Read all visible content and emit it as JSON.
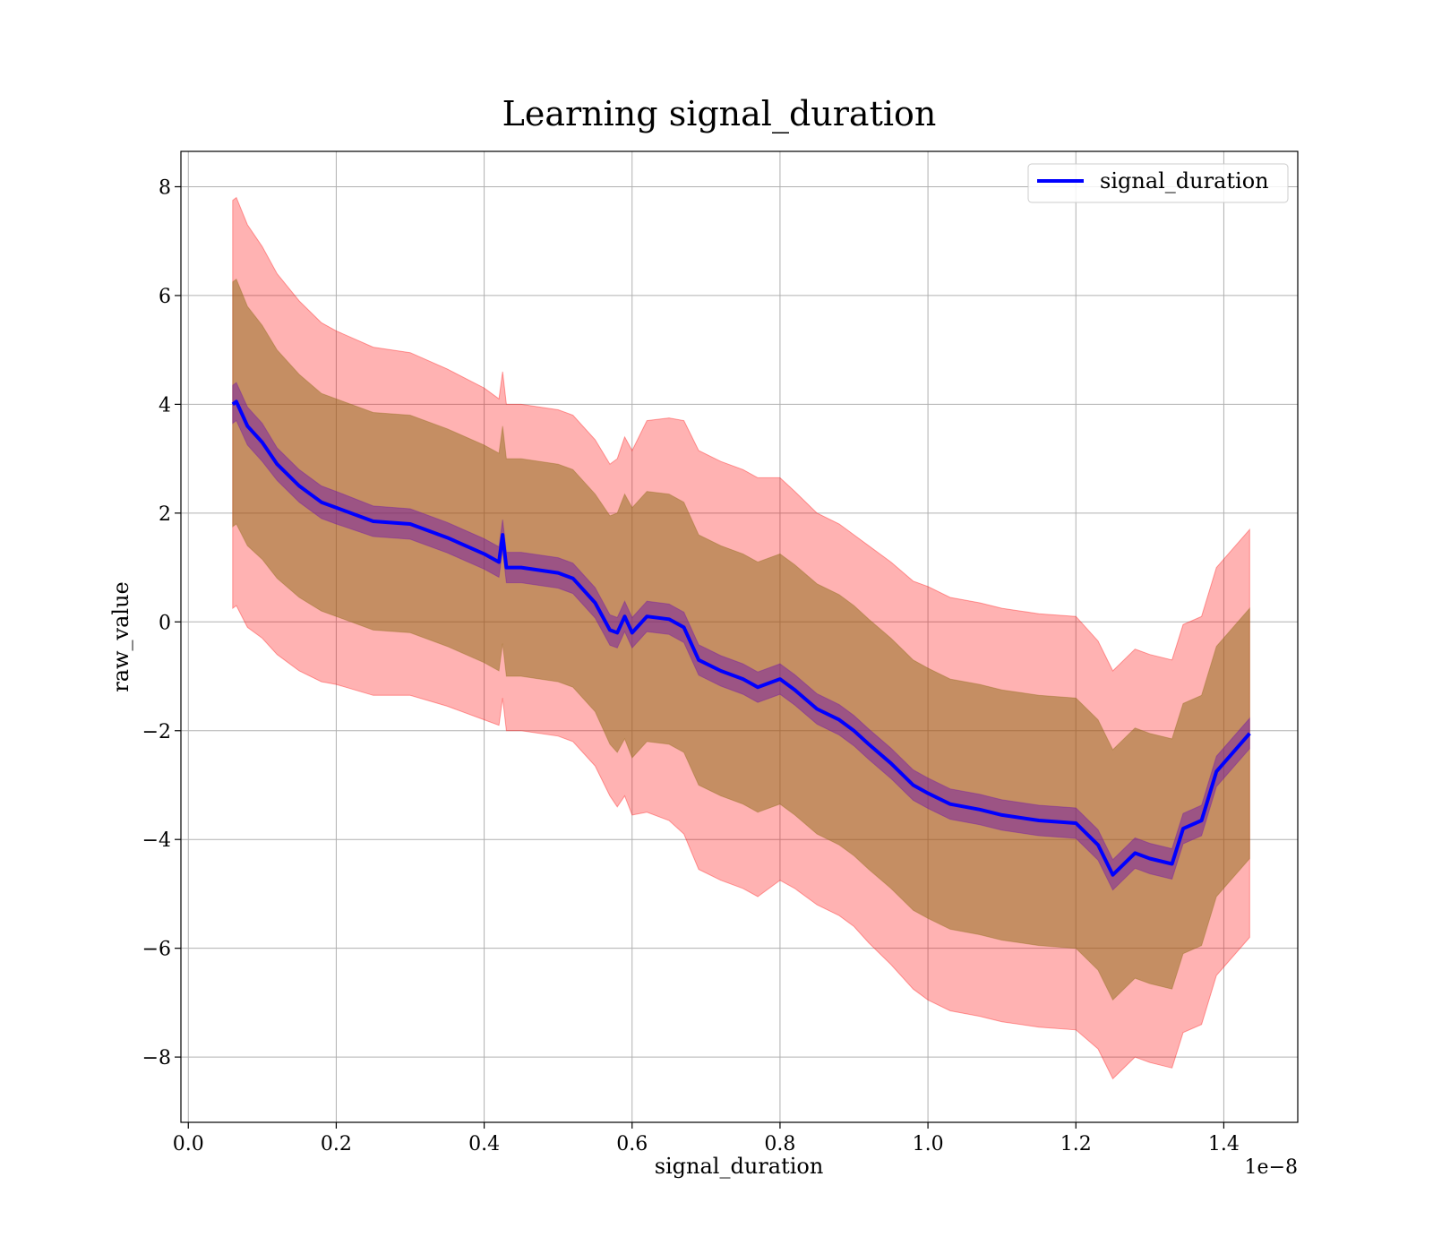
{
  "chart_data": {
    "type": "line",
    "title": "Learning signal_duration",
    "xlabel": "signal_duration",
    "ylabel": "raw_value",
    "x_offset_label": "1e−8",
    "xlim": [
      -0.01,
      1.5
    ],
    "ylim": [
      -9.2,
      8.65
    ],
    "x_ticks": [
      0.0,
      0.2,
      0.4,
      0.6,
      0.8,
      1.0,
      1.2,
      1.4
    ],
    "x_tick_labels": [
      "0.0",
      "0.2",
      "0.4",
      "0.6",
      "0.8",
      "1.0",
      "1.2",
      "1.4"
    ],
    "y_ticks": [
      -8,
      -6,
      -4,
      -2,
      0,
      2,
      4,
      6,
      8
    ],
    "y_tick_labels": [
      "−8",
      "−6",
      "−4",
      "−2",
      "0",
      "2",
      "4",
      "6",
      "8"
    ],
    "grid": true,
    "legend": {
      "position": "top-right",
      "entries": [
        "signal_duration"
      ]
    },
    "colors": {
      "line": "#0000ff",
      "outer_band": "#ff0000",
      "middle_band": "#8b6914",
      "inner_band": "#6a0dad"
    },
    "series": [
      {
        "name": "signal_duration",
        "x": [
          0.06,
          0.065,
          0.08,
          0.1,
          0.12,
          0.15,
          0.18,
          0.2,
          0.25,
          0.3,
          0.35,
          0.4,
          0.42,
          0.425,
          0.43,
          0.45,
          0.5,
          0.52,
          0.55,
          0.57,
          0.58,
          0.59,
          0.6,
          0.62,
          0.65,
          0.67,
          0.69,
          0.72,
          0.75,
          0.77,
          0.8,
          0.82,
          0.85,
          0.88,
          0.9,
          0.92,
          0.95,
          0.98,
          1.0,
          1.03,
          1.07,
          1.1,
          1.15,
          1.2,
          1.23,
          1.25,
          1.28,
          1.3,
          1.33,
          1.345,
          1.37,
          1.39,
          1.435
        ],
        "y": [
          4.0,
          4.05,
          3.6,
          3.3,
          2.9,
          2.5,
          2.2,
          2.1,
          1.85,
          1.8,
          1.55,
          1.25,
          1.1,
          1.6,
          1.0,
          1.0,
          0.9,
          0.8,
          0.35,
          -0.15,
          -0.2,
          0.1,
          -0.2,
          0.1,
          0.05,
          -0.1,
          -0.7,
          -0.9,
          -1.05,
          -1.2,
          -1.05,
          -1.25,
          -1.6,
          -1.8,
          -2.0,
          -2.25,
          -2.6,
          -3.0,
          -3.15,
          -3.35,
          -3.45,
          -3.55,
          -3.65,
          -3.7,
          -4.1,
          -4.65,
          -4.25,
          -4.35,
          -4.45,
          -3.8,
          -3.65,
          -2.75,
          -2.05
        ]
      }
    ],
    "bands": [
      {
        "name": "outer",
        "half_width": [
          3.75,
          3.75,
          3.7,
          3.6,
          3.5,
          3.4,
          3.3,
          3.25,
          3.2,
          3.15,
          3.1,
          3.05,
          3.0,
          3.0,
          3.0,
          3.0,
          3.0,
          3.0,
          3.0,
          3.05,
          3.2,
          3.3,
          3.35,
          3.6,
          3.7,
          3.8,
          3.85,
          3.85,
          3.85,
          3.85,
          3.7,
          3.65,
          3.6,
          3.6,
          3.6,
          3.65,
          3.7,
          3.75,
          3.8,
          3.8,
          3.8,
          3.8,
          3.8,
          3.8,
          3.75,
          3.75,
          3.75,
          3.75,
          3.75,
          3.75,
          3.75,
          3.75,
          3.75
        ]
      },
      {
        "name": "middle",
        "half_width": [
          2.25,
          2.25,
          2.2,
          2.15,
          2.1,
          2.05,
          2.0,
          2.0,
          2.0,
          2.0,
          2.0,
          2.0,
          2.0,
          2.0,
          2.0,
          2.0,
          2.0,
          2.0,
          2.0,
          2.1,
          2.2,
          2.25,
          2.3,
          2.3,
          2.3,
          2.3,
          2.3,
          2.3,
          2.3,
          2.3,
          2.3,
          2.3,
          2.3,
          2.3,
          2.3,
          2.3,
          2.3,
          2.3,
          2.3,
          2.3,
          2.3,
          2.3,
          2.3,
          2.3,
          2.3,
          2.3,
          2.3,
          2.3,
          2.3,
          2.3,
          2.3,
          2.3,
          2.3
        ]
      },
      {
        "name": "inner",
        "half_width": [
          0.35,
          0.35,
          0.35,
          0.35,
          0.3,
          0.3,
          0.3,
          0.3,
          0.28,
          0.28,
          0.28,
          0.28,
          0.28,
          0.28,
          0.28,
          0.28,
          0.28,
          0.28,
          0.28,
          0.28,
          0.28,
          0.28,
          0.28,
          0.28,
          0.28,
          0.28,
          0.28,
          0.28,
          0.28,
          0.28,
          0.28,
          0.28,
          0.28,
          0.28,
          0.28,
          0.28,
          0.28,
          0.28,
          0.28,
          0.28,
          0.28,
          0.28,
          0.28,
          0.28,
          0.28,
          0.28,
          0.28,
          0.28,
          0.28,
          0.28,
          0.28,
          0.28,
          0.28
        ]
      }
    ]
  }
}
